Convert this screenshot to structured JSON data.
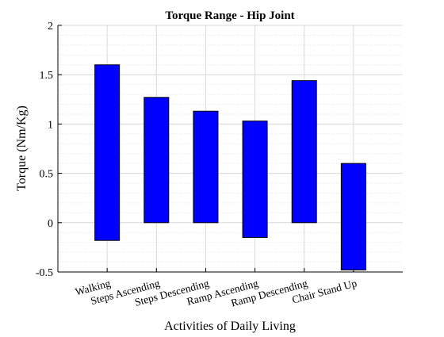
{
  "chart_data": {
    "type": "bar",
    "subtype": "floating-range",
    "title": "Torque Range - Hip Joint",
    "xlabel": "Activities of Daily Living",
    "ylabel": "Torque (Nm/Kg)",
    "ylim": [
      -0.5,
      2
    ],
    "yticks": [
      "-0.5",
      "0",
      "0.5",
      "1",
      "1.5",
      "2"
    ],
    "ytick_values": [
      -0.5,
      0,
      0.5,
      1,
      1.5,
      2
    ],
    "minor_grid_step": 0.1,
    "grid": true,
    "bar_color": "#0000ff",
    "categories": [
      "Walking",
      "Steps Ascending",
      "Steps Descending",
      "Ramp Ascending",
      "Ramp Descending",
      "Chair Stand Up"
    ],
    "series": [
      {
        "low": [
          -0.18,
          0.0,
          0.0,
          -0.15,
          0.0,
          -0.48
        ],
        "high": [
          1.6,
          1.27,
          1.13,
          1.03,
          1.44,
          0.6
        ]
      }
    ]
  }
}
